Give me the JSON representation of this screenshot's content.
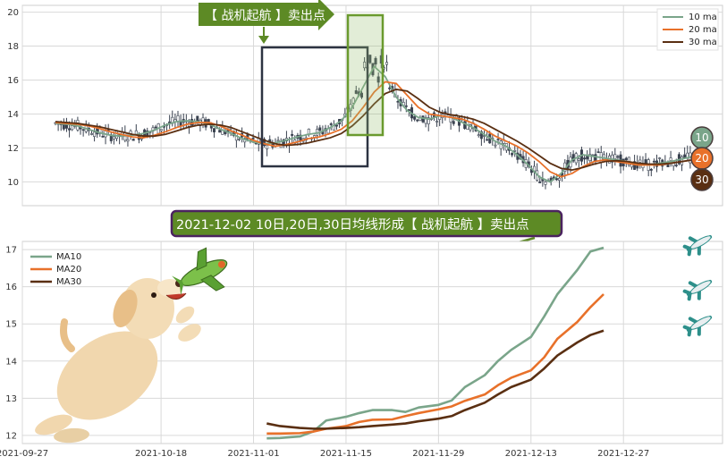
{
  "chart_data": [
    {
      "type": "line",
      "title": "",
      "subtitle": "",
      "y_ticks": [
        10,
        12,
        14,
        16,
        18,
        20
      ],
      "ylim": [
        8.6,
        20.4
      ],
      "grid": true,
      "legend_position": "top-right",
      "series": [
        {
          "name": "10 ma",
          "color": "#7aa58a",
          "values": [
            13.45,
            13.4,
            13.3,
            13.1,
            12.9,
            12.75,
            12.7,
            12.75,
            12.85,
            13.05,
            13.35,
            13.55,
            13.6,
            13.55,
            13.4,
            13.1,
            12.85,
            12.55,
            12.35,
            12.25,
            12.3,
            12.45,
            12.65,
            12.8,
            12.9,
            13.2,
            13.6,
            14.4,
            15.6,
            16.8,
            16.2,
            15.0,
            14.2,
            13.8,
            13.7,
            13.9,
            13.8,
            13.5,
            13.2,
            12.8,
            12.4,
            12.1,
            11.6,
            11.0,
            10.3,
            10.0,
            10.5,
            11.3,
            11.6,
            11.5,
            11.4,
            11.3,
            11.2,
            11.0,
            11.0,
            11.1,
            11.2,
            11.35,
            11.5
          ]
        },
        {
          "name": "20 ma",
          "color": "#e8712a",
          "values": [
            13.5,
            13.45,
            13.4,
            13.3,
            13.15,
            12.95,
            12.8,
            12.65,
            12.6,
            12.75,
            12.95,
            13.2,
            13.4,
            13.5,
            13.5,
            13.3,
            13.0,
            12.75,
            12.45,
            12.25,
            12.1,
            12.2,
            12.35,
            12.55,
            12.65,
            12.85,
            13.1,
            13.6,
            14.4,
            15.3,
            15.9,
            15.8,
            15.1,
            14.4,
            14.0,
            13.9,
            13.8,
            13.7,
            13.45,
            13.1,
            12.7,
            12.4,
            12.1,
            11.7,
            11.2,
            10.6,
            10.3,
            10.5,
            10.9,
            11.2,
            11.3,
            11.2,
            11.1,
            11.0,
            11.0,
            11.0,
            11.1,
            11.2,
            11.3
          ]
        },
        {
          "name": "30 ma",
          "color": "#5a2f12",
          "values": [
            13.55,
            13.5,
            13.45,
            13.35,
            13.25,
            13.1,
            12.95,
            12.8,
            12.7,
            12.7,
            12.8,
            13.0,
            13.2,
            13.35,
            13.4,
            13.35,
            13.2,
            12.95,
            12.7,
            12.45,
            12.25,
            12.15,
            12.2,
            12.3,
            12.45,
            12.6,
            12.85,
            13.3,
            13.9,
            14.6,
            15.2,
            15.45,
            15.35,
            14.9,
            14.4,
            14.1,
            13.95,
            13.85,
            13.7,
            13.45,
            13.1,
            12.75,
            12.4,
            12.0,
            11.55,
            11.1,
            10.8,
            10.7,
            10.85,
            11.05,
            11.2,
            11.25,
            11.2,
            11.1,
            11.05,
            11.05,
            11.1,
            11.2,
            11.3
          ]
        }
      ]
    },
    {
      "type": "line",
      "title": "",
      "subtitle": "",
      "x": [
        "2021-11-03",
        "2021-11-05",
        "2021-11-08",
        "2021-11-10",
        "2021-11-12",
        "2021-11-15",
        "2021-11-17",
        "2021-11-19",
        "2021-11-22",
        "2021-11-24",
        "2021-11-26",
        "2021-11-29",
        "2021-12-01",
        "2021-12-03",
        "2021-12-06",
        "2021-12-08",
        "2021-12-10",
        "2021-12-13",
        "2021-12-15",
        "2021-12-17",
        "2021-12-20",
        "2021-12-22",
        "2021-12-24",
        "2021-12-27",
        "2021-12-29",
        "2021-12-31",
        "2022-01-03",
        "2022-01-05"
      ],
      "x_ticks": [
        "2021-09-27",
        "2021-10-18",
        "2021-11-01",
        "2021-11-15",
        "2021-11-29",
        "2021-12-13",
        "2021-12-27"
      ],
      "x_range": [
        "2021-09-27",
        "2022-01-11"
      ],
      "y_ticks": [
        12,
        13,
        14,
        15,
        16,
        17
      ],
      "ylim": [
        11.78,
        17.22
      ],
      "grid": true,
      "legend_position": "top-left",
      "series": [
        {
          "name": "MA10",
          "color": "#7aa58a",
          "values": [
            11.92,
            11.93,
            11.97,
            12.1,
            12.4,
            12.5,
            12.6,
            12.68,
            12.68,
            12.63,
            12.75,
            12.82,
            12.94,
            13.3,
            13.62,
            14.0,
            14.3,
            14.65,
            15.2,
            15.8,
            16.45,
            16.95,
            17.05,
            null,
            null,
            null,
            null,
            null
          ]
        },
        {
          "name": "MA20",
          "color": "#e8712a",
          "values": [
            12.05,
            12.05,
            12.06,
            12.1,
            12.18,
            12.25,
            12.36,
            12.42,
            12.43,
            12.52,
            12.6,
            12.7,
            12.78,
            12.93,
            13.1,
            13.35,
            13.55,
            13.75,
            14.1,
            14.6,
            15.05,
            15.45,
            15.8,
            null,
            null,
            null,
            null,
            null
          ]
        },
        {
          "name": "MA30",
          "color": "#5a2f12",
          "values": [
            12.32,
            12.25,
            12.2,
            12.18,
            12.18,
            12.2,
            12.22,
            12.25,
            12.29,
            12.32,
            12.38,
            12.45,
            12.52,
            12.68,
            12.88,
            13.1,
            13.3,
            13.5,
            13.8,
            14.15,
            14.5,
            14.7,
            14.82,
            null,
            null,
            null,
            null,
            null
          ]
        }
      ]
    }
  ],
  "annotations": {
    "top_banner": "【 战机起航 】卖出点",
    "mid_banner": "2021-12-02 10日,20日,30日均线形成【 战机起航 】卖出点",
    "badge_10": "10",
    "badge_20": "20",
    "badge_30": "30"
  },
  "icons": [
    "puppy-icon",
    "toy-plane-icon",
    "airplane-icon"
  ],
  "colors": {
    "banner_green": "#5d8a25",
    "banner_text": "#ffffff",
    "highlight_box_fill": "rgba(150,190,110,0.28)",
    "highlight_box_border": "#6a9a2e",
    "dark_box": "#2d3342",
    "candles": "#3a4250"
  }
}
